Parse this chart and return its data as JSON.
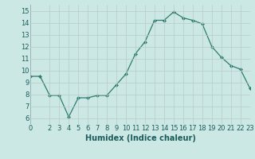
{
  "x": [
    0,
    1,
    2,
    3,
    4,
    5,
    6,
    7,
    8,
    9,
    10,
    11,
    12,
    13,
    14,
    15,
    16,
    17,
    18,
    19,
    20,
    21,
    22,
    23
  ],
  "y": [
    9.5,
    9.5,
    7.9,
    7.9,
    6.1,
    7.7,
    7.7,
    7.9,
    7.9,
    8.8,
    9.7,
    11.4,
    12.4,
    14.2,
    14.2,
    14.9,
    14.4,
    14.2,
    13.9,
    12.0,
    11.1,
    10.4,
    10.1,
    8.5
  ],
  "xlabel": "Humidex (Indice chaleur)",
  "xlim": [
    0,
    23
  ],
  "ylim": [
    5.5,
    15.5
  ],
  "yticks": [
    6,
    7,
    8,
    9,
    10,
    11,
    12,
    13,
    14,
    15
  ],
  "xtick_vals": [
    0,
    2,
    3,
    4,
    5,
    6,
    7,
    8,
    9,
    10,
    11,
    12,
    13,
    14,
    15,
    16,
    17,
    18,
    19,
    20,
    21,
    22,
    23
  ],
  "line_color": "#2d7b6e",
  "marker_color": "#2d7b6e",
  "bg_color": "#cce8e5",
  "grid_color": "#b8cbc9",
  "tick_label_color": "#1a5c5c",
  "xlabel_color": "#1a5c5c",
  "xlabel_fontsize": 7,
  "tick_fontsize": 6
}
